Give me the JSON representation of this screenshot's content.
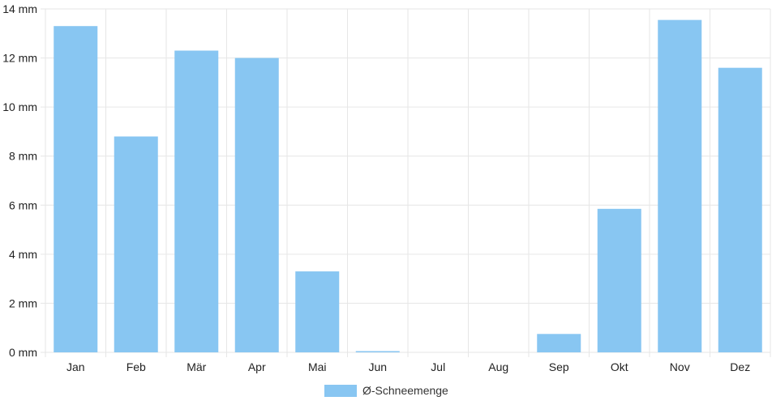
{
  "chart_data": {
    "type": "bar",
    "categories": [
      "Jan",
      "Feb",
      "Mär",
      "Apr",
      "Mai",
      "Jun",
      "Jul",
      "Aug",
      "Sep",
      "Okt",
      "Nov",
      "Dez"
    ],
    "series": [
      {
        "name": "Ø-Schneemenge",
        "values": [
          13.3,
          8.8,
          12.3,
          12.0,
          3.3,
          0.05,
          0,
          0,
          0.75,
          5.85,
          13.55,
          11.6
        ],
        "color": "#88c6f2"
      }
    ],
    "ylim": [
      0,
      14
    ],
    "yticks": [
      0,
      2,
      4,
      6,
      8,
      10,
      12,
      14
    ],
    "y_unit": "mm",
    "grid": true,
    "legend_position": "bottom-center"
  }
}
